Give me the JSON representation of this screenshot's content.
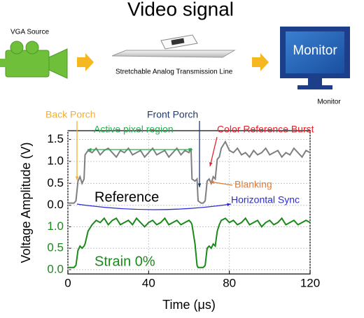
{
  "diagram": {
    "title": "Video signal",
    "source_label": "VGA Source",
    "line_label": "Stretchable Analog Transmission Line",
    "monitor_screen": "Monitor",
    "monitor_label": "Monitor"
  },
  "chart_data": [
    {
      "type": "line",
      "ylabel": "Voltage Amplitude (V)",
      "x": [
        0,
        3,
        4,
        5,
        6,
        7,
        8,
        8.5,
        10,
        12,
        14,
        16,
        18,
        20,
        22,
        24,
        26,
        28,
        30,
        32,
        34,
        36,
        38,
        40,
        42,
        44,
        46,
        48,
        50,
        52,
        54,
        56,
        58,
        60,
        61,
        61.5,
        63,
        64,
        64.5,
        66,
        67,
        68,
        69,
        70,
        71,
        72,
        73,
        74,
        75,
        76,
        78,
        80,
        82,
        84,
        86,
        88,
        90,
        92,
        94,
        96,
        98,
        100,
        102,
        104,
        106,
        108,
        110,
        112,
        114,
        116,
        118,
        120
      ],
      "series": [
        {
          "name": "Reference",
          "color": "#7f7f7f",
          "values": [
            0.05,
            0.05,
            0.1,
            0.55,
            0.65,
            0.5,
            0.6,
            1.15,
            1.25,
            1.2,
            1.3,
            1.15,
            1.25,
            1.3,
            1.2,
            1.1,
            1.25,
            1.2,
            1.3,
            1.15,
            1.2,
            1.25,
            1.1,
            1.2,
            1.3,
            1.15,
            1.2,
            1.25,
            1.1,
            1.2,
            1.3,
            1.15,
            1.25,
            1.2,
            1.3,
            0.6,
            0.55,
            0.6,
            0.1,
            0.05,
            0.05,
            0.1,
            0.55,
            0.6,
            0.5,
            0.65,
            0.6,
            1.05,
            1.1,
            1.3,
            1.45,
            1.25,
            1.2,
            1.3,
            1.15,
            1.2,
            1.1,
            1.25,
            1.15,
            1.2,
            1.3,
            1.15,
            1.2,
            1.25,
            1.1,
            1.2,
            1.15,
            1.3,
            1.2,
            1.1,
            1.25,
            1.2
          ]
        }
      ],
      "xlim": [
        0,
        120
      ],
      "ylim": [
        -0.1,
        1.7
      ],
      "yticks": [
        {
          "value": 0,
          "label": "0.0"
        },
        {
          "value": 0.5,
          "label": "0.5"
        },
        {
          "value": 1,
          "label": "1.0"
        },
        {
          "value": 1.5,
          "label": "1.5"
        }
      ],
      "tick_color": "#000000",
      "grid": true,
      "annotations": [
        {
          "text": "Back Porch",
          "color": "#f0b030"
        },
        {
          "text": "Front Porch",
          "color": "#1f3a6e"
        },
        {
          "text": "Active pixel region",
          "color": "#22b04c"
        },
        {
          "text": "Color Reference Burst",
          "color": "#e8202a"
        },
        {
          "text": "Blanking",
          "color": "#e07b39"
        },
        {
          "text": "Horizontal Sync",
          "color": "#2a2adb"
        }
      ]
    },
    {
      "type": "line",
      "xlabel": "Time (μs)",
      "x": [
        0,
        3,
        4,
        5,
        6,
        7,
        8,
        8.5,
        10,
        12,
        14,
        16,
        18,
        20,
        22,
        24,
        26,
        28,
        30,
        32,
        34,
        36,
        38,
        40,
        42,
        44,
        46,
        48,
        50,
        52,
        54,
        56,
        58,
        60,
        61,
        61.5,
        63,
        64,
        64.5,
        66,
        67,
        68,
        69,
        70,
        71,
        72,
        73,
        74,
        75,
        76,
        78,
        80,
        82,
        84,
        86,
        88,
        90,
        92,
        94,
        96,
        98,
        100,
        102,
        104,
        106,
        108,
        110,
        112,
        114,
        116,
        118,
        120
      ],
      "series": [
        {
          "name": "Strain 0%",
          "color": "#1a8a1a",
          "values": [
            0.05,
            0.05,
            0.1,
            0.45,
            0.55,
            0.5,
            0.55,
            0.6,
            0.9,
            1.05,
            1.15,
            1.1,
            1.2,
            1.05,
            1.15,
            1.2,
            1.05,
            1.1,
            1.15,
            1.05,
            1.2,
            1.1,
            1.0,
            1.1,
            1.15,
            1.05,
            1.1,
            1.2,
            1.05,
            1.1,
            1.15,
            1.05,
            1.1,
            1.15,
            1.1,
            1.05,
            0.6,
            0.1,
            0.05,
            0.05,
            0.05,
            0.1,
            0.5,
            0.55,
            0.5,
            0.6,
            0.55,
            0.9,
            1.05,
            1.15,
            1.2,
            1.1,
            1.15,
            1.05,
            1.1,
            1.2,
            1.05,
            1.1,
            1.15,
            1.0,
            1.1,
            1.15,
            1.05,
            1.1,
            1.2,
            1.05,
            1.1,
            1.15,
            1.05,
            1.1,
            1.15,
            1.1
          ]
        }
      ],
      "xlim": [
        0,
        120
      ],
      "ylim": [
        -0.1,
        1.4
      ],
      "xticks": [
        0,
        40,
        80,
        120
      ],
      "yticks": [
        {
          "value": 0,
          "label": "0.0"
        },
        {
          "value": 0.5,
          "label": "0.5"
        },
        {
          "value": 1,
          "label": "1.0"
        }
      ],
      "tick_color": "#1a8a1a",
      "grid": true
    }
  ]
}
